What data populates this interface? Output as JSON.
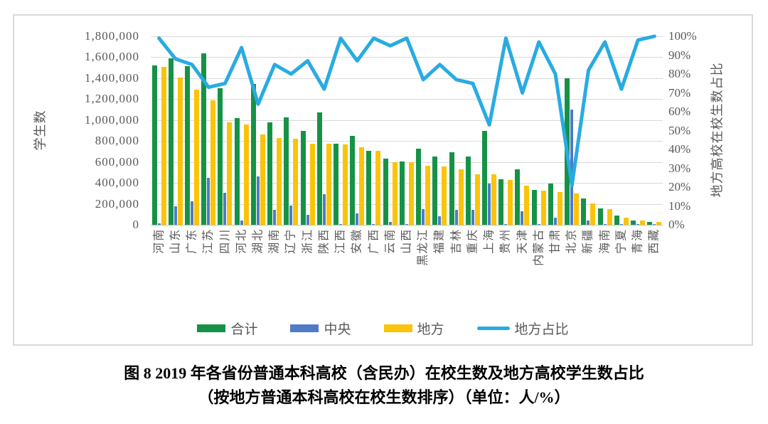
{
  "figure": {
    "caption_line1": "图 8  2019 年各省份普通本科高校（含民办）在校生数及地方高校学生数占比",
    "caption_line2": "（按地方普通本科高校在校生数排序）（单位：人/%）"
  },
  "chart_data": {
    "type": "bar",
    "subtype": "grouped-bars-with-line-overlay",
    "title": "",
    "xlabel": "",
    "left_axis": {
      "title": "学生数",
      "min": 0,
      "max": 1800000,
      "step": 200000,
      "tick_labels": [
        "1,800,000",
        "1,600,000",
        "1,400,000",
        "1,200,000",
        "1,000,000",
        "800,000",
        "600,000",
        "400,000",
        "200,000",
        "0"
      ]
    },
    "right_axis": {
      "title": "地方高校在校生数占比",
      "min": 0,
      "max": 100,
      "step": 10,
      "tick_labels": [
        "100%",
        "90%",
        "80%",
        "70%",
        "60%",
        "50%",
        "40%",
        "30%",
        "20%",
        "10%",
        "0%"
      ]
    },
    "grid": true,
    "legend_position": "bottom",
    "categories": [
      "河南",
      "山东",
      "广东",
      "江苏",
      "四川",
      "河北",
      "湖北",
      "湖南",
      "辽宁",
      "浙江",
      "陕西",
      "江西",
      "安徽",
      "广西",
      "云南",
      "山西",
      "黑龙江",
      "福建",
      "吉林",
      "重庆",
      "上海",
      "贵州",
      "天津",
      "内蒙古",
      "甘肃",
      "北京",
      "新疆",
      "海南",
      "宁夏",
      "青海",
      "西藏"
    ],
    "series": [
      {
        "name": "合计",
        "type": "bar",
        "color": "#169247",
        "values": [
          1520000,
          1590000,
          1515000,
          1640000,
          1305000,
          1020000,
          1345000,
          980000,
          1025000,
          895000,
          1075000,
          775000,
          850000,
          710000,
          630000,
          605000,
          730000,
          655000,
          690000,
          650000,
          900000,
          432000,
          530000,
          334000,
          395000,
          1400000,
          250000,
          155000,
          90000,
          42000,
          28000
        ]
      },
      {
        "name": "中央",
        "type": "bar",
        "color": "#4f7bc7",
        "values": [
          15000,
          180000,
          225000,
          450000,
          305000,
          40000,
          465000,
          145000,
          185000,
          95000,
          290000,
          5000,
          110000,
          5000,
          30000,
          7000,
          150000,
          85000,
          145000,
          145000,
          395000,
          5000,
          130000,
          5000,
          65000,
          1100000,
          40000,
          5000,
          8000,
          2000,
          2000
        ]
      },
      {
        "name": "地方",
        "type": "bar",
        "color": "#fbc309",
        "values": [
          1505000,
          1405000,
          1290000,
          1190000,
          980000,
          960000,
          865000,
          830000,
          825000,
          775000,
          772000,
          770000,
          740000,
          705000,
          600000,
          598000,
          565000,
          555000,
          530000,
          485000,
          480000,
          425000,
          372000,
          323000,
          315000,
          300000,
          205000,
          150000,
          65000,
          40000,
          25000
        ]
      },
      {
        "name": "地方占比",
        "type": "line",
        "color": "#29abe2",
        "axis": "right",
        "values_pct": [
          99,
          88,
          85,
          73,
          75,
          94,
          64,
          85,
          80,
          87,
          72,
          99,
          87,
          99,
          95,
          99,
          77,
          85,
          77,
          75,
          53,
          99,
          70,
          97,
          80,
          21,
          82,
          97,
          72,
          98,
          100
        ]
      }
    ],
    "colors": {
      "gridline": "#d9d9d9",
      "axis_line": "#bfbfbf",
      "axis_text": "#595959",
      "chart_border": "#d9d9d9"
    }
  }
}
